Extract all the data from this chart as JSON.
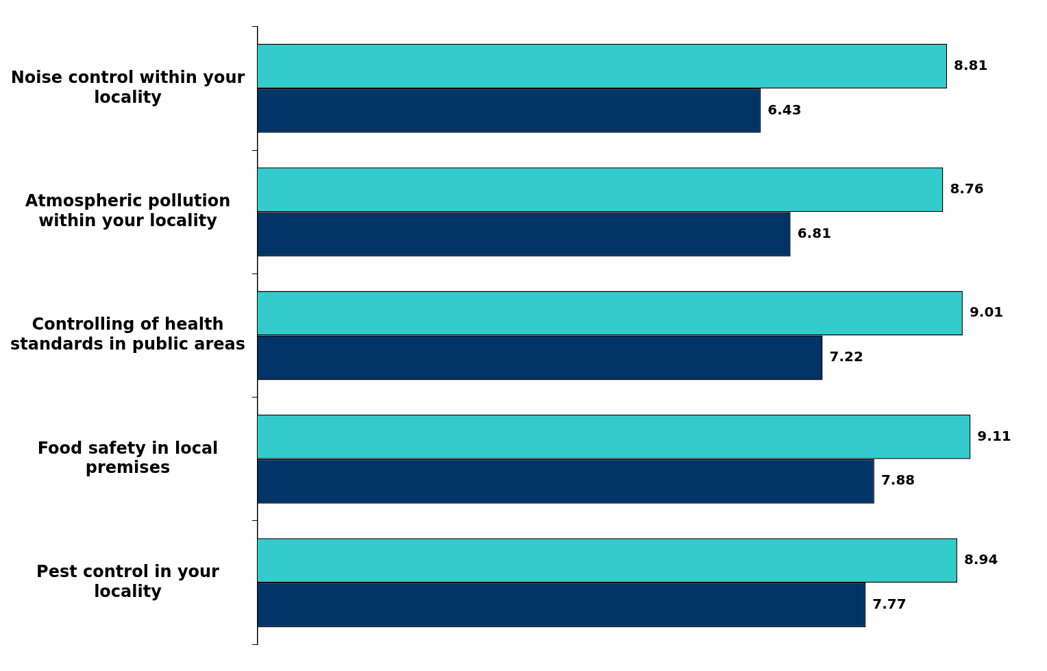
{
  "chart_data": {
    "type": "bar",
    "orientation": "horizontal",
    "categories": [
      "Noise control within your locality",
      "Atmospheric pollution within your locality",
      "Controlling of health standards in public areas",
      "Food safety in local premises",
      "Pest control in your locality"
    ],
    "series": [
      {
        "color": "#33cccc",
        "values": [
          8.81,
          8.76,
          9.01,
          9.11,
          8.94
        ]
      },
      {
        "color": "#003366",
        "values": [
          6.43,
          6.81,
          7.22,
          7.88,
          7.77
        ]
      }
    ],
    "data_labels": true,
    "legend": false
  }
}
